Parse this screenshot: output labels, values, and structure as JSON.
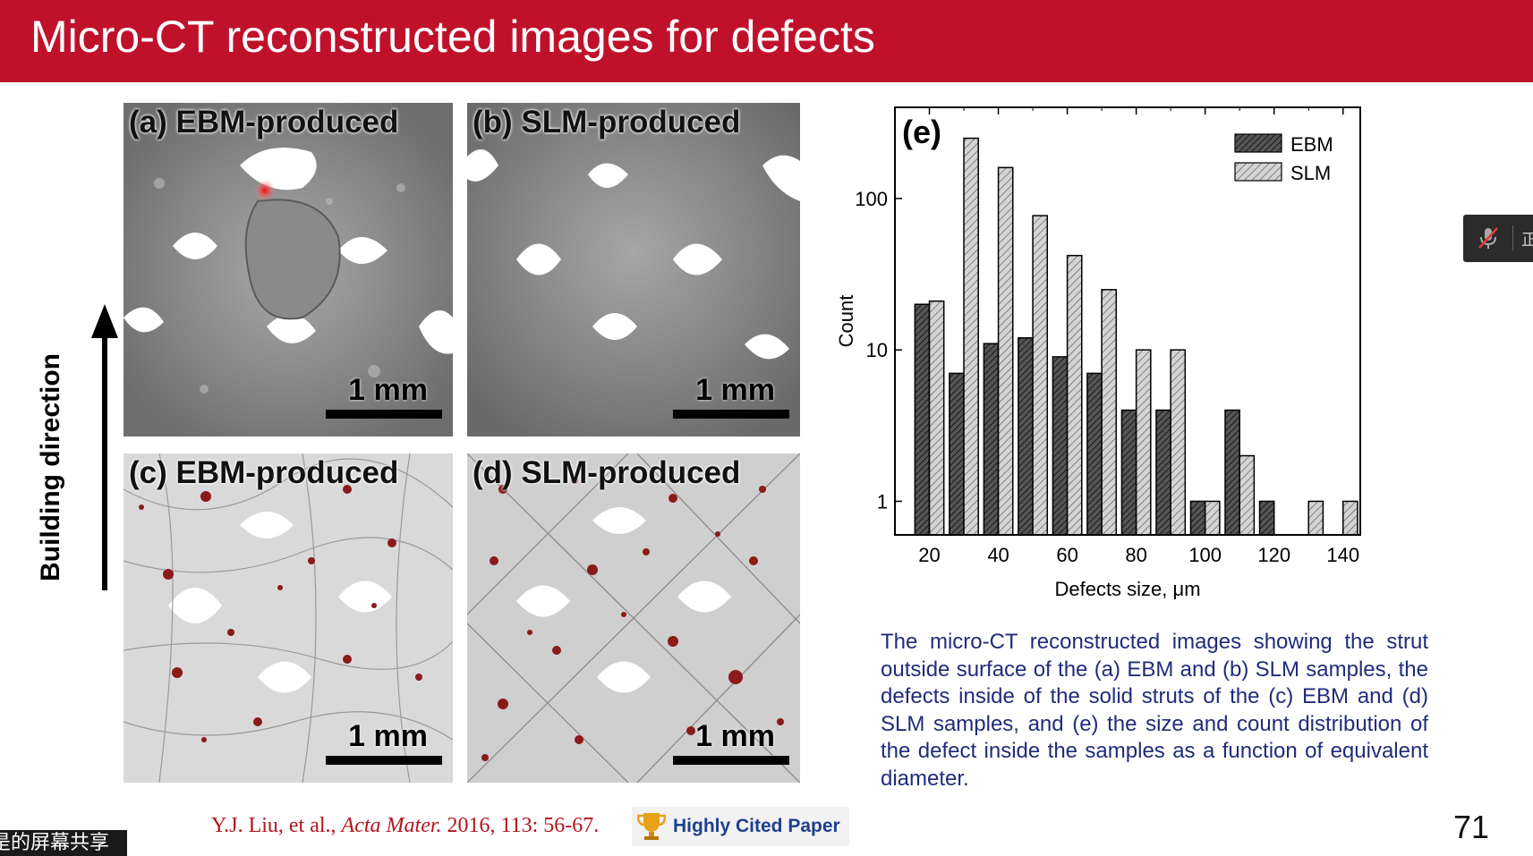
{
  "slide": {
    "title": "Micro-CT reconstructed images for defects",
    "page_number": "71",
    "colors": {
      "title_bar": "#c0112b",
      "caption": "#1f2d7a",
      "citation": "#b5141e",
      "badge_text": "#1f3f8f"
    }
  },
  "figure": {
    "panels": [
      {
        "label": "(a) EBM-produced",
        "scale": "1 mm"
      },
      {
        "label": "(b) SLM-produced",
        "scale": "1 mm"
      },
      {
        "label": "(c) EBM-produced",
        "scale": "1 mm"
      },
      {
        "label": "(d) SLM-produced",
        "scale": "1 mm"
      }
    ],
    "building_direction": "Building direction"
  },
  "chart_data": {
    "type": "bar",
    "panel_label": "(e)",
    "xlabel": "Defects size, μm",
    "ylabel": "Count",
    "yscale": "log",
    "ylim": [
      0.6,
      400
    ],
    "xlim": [
      10,
      145
    ],
    "x_ticks": [
      20,
      40,
      60,
      80,
      100,
      120,
      140
    ],
    "y_ticks": [
      {
        "v": 1,
        "label": "1"
      },
      {
        "v": 10,
        "label": "10"
      },
      {
        "v": 100,
        "label": "100"
      }
    ],
    "legend_position": "top-right",
    "series": [
      {
        "name": "EBM",
        "color": "#4a4a4a",
        "x": [
          20,
          30,
          40,
          50,
          60,
          70,
          80,
          90,
          100,
          110,
          120
        ],
        "values": [
          20,
          7,
          11,
          12,
          9,
          7,
          4,
          4,
          1,
          4,
          1
        ]
      },
      {
        "name": "SLM",
        "color": "#c8c8c8",
        "x": [
          20,
          30,
          40,
          50,
          60,
          70,
          80,
          90,
          100,
          110,
          130,
          140
        ],
        "values": [
          21,
          250,
          160,
          77,
          42,
          25,
          10,
          10,
          1,
          2,
          1,
          1
        ]
      }
    ]
  },
  "caption": "The micro-CT reconstructed images showing the strut outside surface of the (a) EBM and (b) SLM samples, the defects inside of the solid struts of the (c) EBM and (d) SLM samples, and (e) the size and count distribution of the defect inside the samples as a function of equivalent diameter.",
  "citation": {
    "authors": "Y.J. Liu, et al., ",
    "journal": "Acta Mater.",
    "details": " 2016, 113: 56-67."
  },
  "badge": {
    "label": "Highly Cited Paper",
    "icon": "trophy-icon"
  },
  "screen_share": {
    "label": "是的屏幕共享"
  },
  "side_widget": {
    "icon": "muted-microphone-icon",
    "text": "正"
  }
}
